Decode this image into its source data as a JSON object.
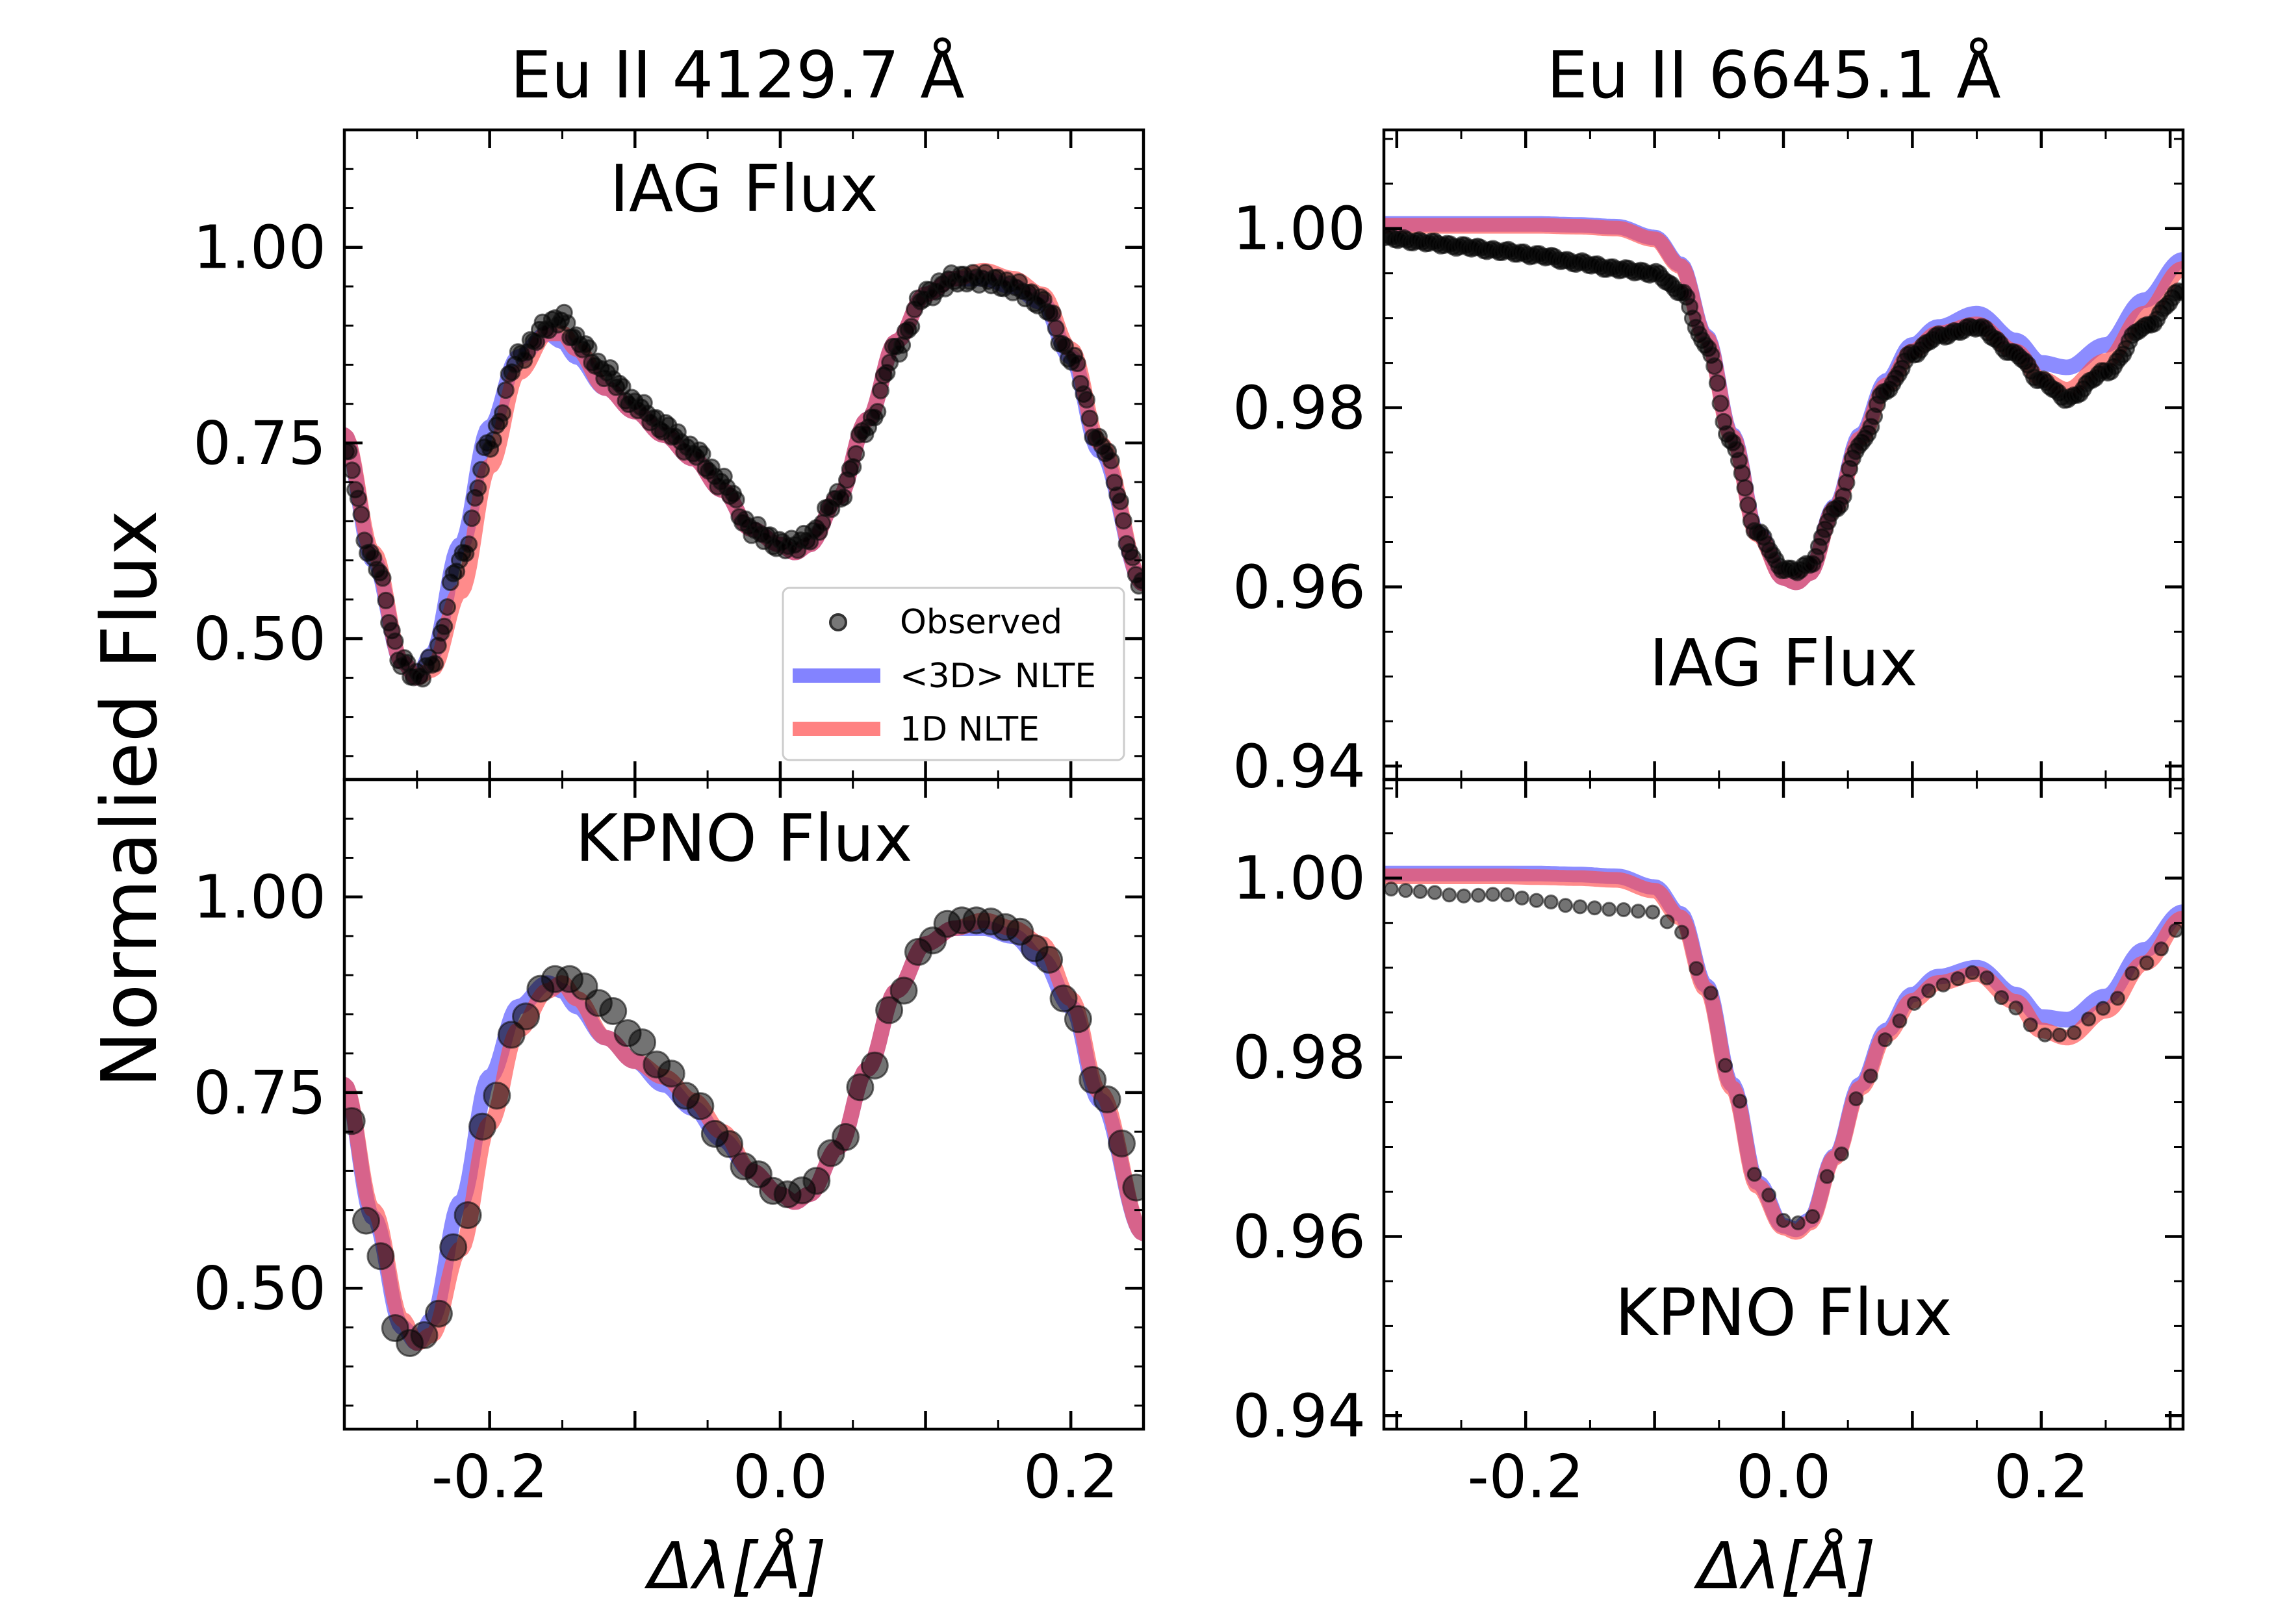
{
  "figure": {
    "ylabel": "Normalied Flux",
    "xlabel": "Δλ[Å]"
  },
  "legend": {
    "observed": "Observed",
    "nlte3d": "<3D> NLTE",
    "nlte1d": "1D NLTE"
  },
  "colors": {
    "observed": "#000000",
    "nlte3d": "#4040ff",
    "nlte1d": "#ff4d4d",
    "overlap": "#b2185a"
  },
  "chart_data": [
    {
      "type": "line",
      "column_title": "Eu II 4129.7 Å",
      "panel_label": "IAG Flux",
      "xlim": [
        -0.3,
        0.25
      ],
      "ylim": [
        0.32,
        1.15
      ],
      "xticks": [
        "-0.2",
        "0.0",
        "0.2"
      ],
      "yticks": [
        "0.50",
        "0.75",
        "1.00"
      ],
      "legend": true,
      "x": [
        -0.3,
        -0.28,
        -0.26,
        -0.25,
        -0.24,
        -0.22,
        -0.2,
        -0.18,
        -0.16,
        -0.15,
        -0.14,
        -0.12,
        -0.1,
        -0.08,
        -0.06,
        -0.04,
        -0.02,
        0.0,
        0.01,
        0.02,
        0.04,
        0.06,
        0.08,
        0.1,
        0.12,
        0.14,
        0.16,
        0.18,
        0.2,
        0.22,
        0.25
      ],
      "series": [
        {
          "name": "Observed",
          "style": "points",
          "values": [
            0.74,
            0.6,
            0.47,
            0.45,
            0.47,
            0.6,
            0.75,
            0.86,
            0.9,
            0.91,
            0.88,
            0.84,
            0.8,
            0.77,
            0.74,
            0.7,
            0.64,
            0.62,
            0.62,
            0.63,
            0.68,
            0.77,
            0.87,
            0.94,
            0.96,
            0.96,
            0.95,
            0.93,
            0.86,
            0.75,
            0.57
          ]
        },
        {
          "name": "<3D> NLTE",
          "style": "line",
          "values": [
            0.76,
            0.6,
            0.47,
            0.45,
            0.48,
            0.62,
            0.77,
            0.86,
            0.89,
            0.88,
            0.86,
            0.82,
            0.79,
            0.76,
            0.73,
            0.69,
            0.64,
            0.62,
            0.61,
            0.62,
            0.68,
            0.78,
            0.88,
            0.94,
            0.96,
            0.96,
            0.95,
            0.93,
            0.86,
            0.74,
            0.57
          ]
        },
        {
          "name": "1D NLTE",
          "style": "line",
          "values": [
            0.76,
            0.61,
            0.47,
            0.45,
            0.46,
            0.56,
            0.72,
            0.84,
            0.89,
            0.89,
            0.87,
            0.82,
            0.79,
            0.76,
            0.73,
            0.69,
            0.64,
            0.62,
            0.61,
            0.62,
            0.68,
            0.78,
            0.88,
            0.94,
            0.96,
            0.97,
            0.96,
            0.94,
            0.87,
            0.75,
            0.57
          ]
        }
      ]
    },
    {
      "type": "line",
      "panel_label": "KPNO Flux",
      "xlim": [
        -0.3,
        0.25
      ],
      "ylim": [
        0.32,
        1.15
      ],
      "xticks": [
        "-0.2",
        "0.0",
        "0.2"
      ],
      "yticks": [
        "0.50",
        "0.75",
        "1.00"
      ],
      "legend": false,
      "x": [
        -0.3,
        -0.28,
        -0.26,
        -0.25,
        -0.24,
        -0.22,
        -0.2,
        -0.18,
        -0.16,
        -0.15,
        -0.14,
        -0.12,
        -0.1,
        -0.08,
        -0.06,
        -0.04,
        -0.02,
        0.0,
        0.01,
        0.02,
        0.04,
        0.06,
        0.08,
        0.1,
        0.12,
        0.14,
        0.16,
        0.18,
        0.2,
        0.22,
        0.25
      ],
      "series": [
        {
          "name": "Observed",
          "style": "points",
          "values": [
            0.74,
            0.56,
            0.43,
            0.43,
            0.45,
            0.57,
            0.73,
            0.84,
            0.89,
            0.9,
            0.89,
            0.86,
            0.82,
            0.78,
            0.74,
            0.69,
            0.65,
            0.62,
            0.62,
            0.63,
            0.68,
            0.77,
            0.87,
            0.94,
            0.97,
            0.97,
            0.96,
            0.93,
            0.86,
            0.75,
            0.62
          ]
        },
        {
          "name": "<3D> NLTE",
          "style": "line",
          "values": [
            0.76,
            0.59,
            0.45,
            0.43,
            0.46,
            0.61,
            0.77,
            0.86,
            0.89,
            0.88,
            0.86,
            0.82,
            0.79,
            0.76,
            0.73,
            0.69,
            0.65,
            0.62,
            0.61,
            0.62,
            0.68,
            0.78,
            0.88,
            0.94,
            0.96,
            0.96,
            0.95,
            0.92,
            0.86,
            0.74,
            0.57
          ]
        },
        {
          "name": "1D NLTE",
          "style": "line",
          "values": [
            0.76,
            0.6,
            0.46,
            0.43,
            0.44,
            0.55,
            0.71,
            0.83,
            0.88,
            0.89,
            0.87,
            0.82,
            0.79,
            0.77,
            0.74,
            0.7,
            0.65,
            0.62,
            0.61,
            0.62,
            0.68,
            0.78,
            0.88,
            0.94,
            0.96,
            0.97,
            0.96,
            0.94,
            0.87,
            0.75,
            0.57
          ]
        }
      ]
    },
    {
      "type": "line",
      "column_title": "Eu II 6645.1 Å",
      "panel_label": "IAG Flux",
      "xlim": [
        -0.31,
        0.31
      ],
      "ylim": [
        0.9385,
        1.011
      ],
      "xticks": [
        "-0.2",
        "0.0",
        "0.2"
      ],
      "yticks": [
        "0.94",
        "0.96",
        "0.98",
        "1.00"
      ],
      "legend": false,
      "x": [
        -0.31,
        -0.28,
        -0.25,
        -0.22,
        -0.19,
        -0.16,
        -0.13,
        -0.1,
        -0.08,
        -0.06,
        -0.04,
        -0.02,
        0.0,
        0.01,
        0.02,
        0.04,
        0.06,
        0.08,
        0.1,
        0.12,
        0.15,
        0.18,
        0.2,
        0.22,
        0.25,
        0.28,
        0.31
      ],
      "series": [
        {
          "name": "Observed",
          "style": "points",
          "values": [
            0.999,
            0.9985,
            0.998,
            0.9975,
            0.997,
            0.9962,
            0.9955,
            0.995,
            0.993,
            0.987,
            0.976,
            0.966,
            0.962,
            0.9618,
            0.9625,
            0.9685,
            0.976,
            0.982,
            0.986,
            0.988,
            0.989,
            0.986,
            0.983,
            0.981,
            0.984,
            0.989,
            0.993
          ]
        },
        {
          "name": "<3D> NLTE",
          "style": "line",
          "values": [
            1.0005,
            1.0005,
            1.0005,
            1.0005,
            1.0005,
            1.0004,
            1.0002,
            0.999,
            0.996,
            0.988,
            0.977,
            0.966,
            0.961,
            0.9605,
            0.9615,
            0.969,
            0.977,
            0.983,
            0.987,
            0.989,
            0.9905,
            0.9875,
            0.985,
            0.9845,
            0.987,
            0.992,
            0.9965
          ]
        },
        {
          "name": "1D NLTE",
          "style": "line",
          "values": [
            1.0003,
            1.0003,
            1.0003,
            1.0003,
            1.0003,
            1.0002,
            1.0,
            0.9988,
            0.9958,
            0.9878,
            0.9768,
            0.9658,
            0.961,
            0.9605,
            0.9615,
            0.9688,
            0.9766,
            0.9825,
            0.9863,
            0.9883,
            0.9893,
            0.9863,
            0.9832,
            0.982,
            0.9852,
            0.9905,
            0.9955
          ]
        }
      ]
    },
    {
      "type": "line",
      "panel_label": "KPNO Flux",
      "xlim": [
        -0.31,
        0.31
      ],
      "ylim": [
        0.9385,
        1.011
      ],
      "xticks": [
        "-0.2",
        "0.0",
        "0.2"
      ],
      "yticks": [
        "0.94",
        "0.96",
        "0.98",
        "1.00"
      ],
      "legend": false,
      "x": [
        -0.31,
        -0.28,
        -0.25,
        -0.22,
        -0.19,
        -0.16,
        -0.13,
        -0.1,
        -0.08,
        -0.06,
        -0.04,
        -0.02,
        0.0,
        0.01,
        0.02,
        0.04,
        0.06,
        0.08,
        0.1,
        0.12,
        0.15,
        0.18,
        0.2,
        0.22,
        0.25,
        0.28,
        0.31
      ],
      "series": [
        {
          "name": "Observed",
          "style": "points",
          "values": [
            0.9988,
            0.9985,
            0.998,
            0.9982,
            0.9975,
            0.9968,
            0.9965,
            0.9962,
            0.994,
            0.988,
            0.9775,
            0.9665,
            0.9618,
            0.9615,
            0.962,
            0.968,
            0.976,
            0.982,
            0.986,
            0.988,
            0.9895,
            0.9855,
            0.9825,
            0.9825,
            0.9855,
            0.9905,
            0.9945
          ]
        },
        {
          "name": "<3D> NLTE",
          "style": "line",
          "values": [
            1.0005,
            1.0005,
            1.0005,
            1.0005,
            1.0005,
            1.0004,
            1.0002,
            0.999,
            0.996,
            0.988,
            0.977,
            0.966,
            0.9612,
            0.9608,
            0.9618,
            0.969,
            0.977,
            0.983,
            0.987,
            0.989,
            0.99,
            0.987,
            0.9845,
            0.9842,
            0.9868,
            0.992,
            0.9962
          ]
        },
        {
          "name": "1D NLTE",
          "style": "line",
          "values": [
            1.0002,
            1.0002,
            1.0002,
            1.0002,
            1.0001,
            1.0,
            0.9998,
            0.9986,
            0.9956,
            0.9876,
            0.9766,
            0.9656,
            0.961,
            0.9605,
            0.9615,
            0.9688,
            0.9766,
            0.9825,
            0.9863,
            0.9883,
            0.9893,
            0.9862,
            0.983,
            0.9822,
            0.9852,
            0.9905,
            0.9955
          ]
        }
      ]
    }
  ]
}
